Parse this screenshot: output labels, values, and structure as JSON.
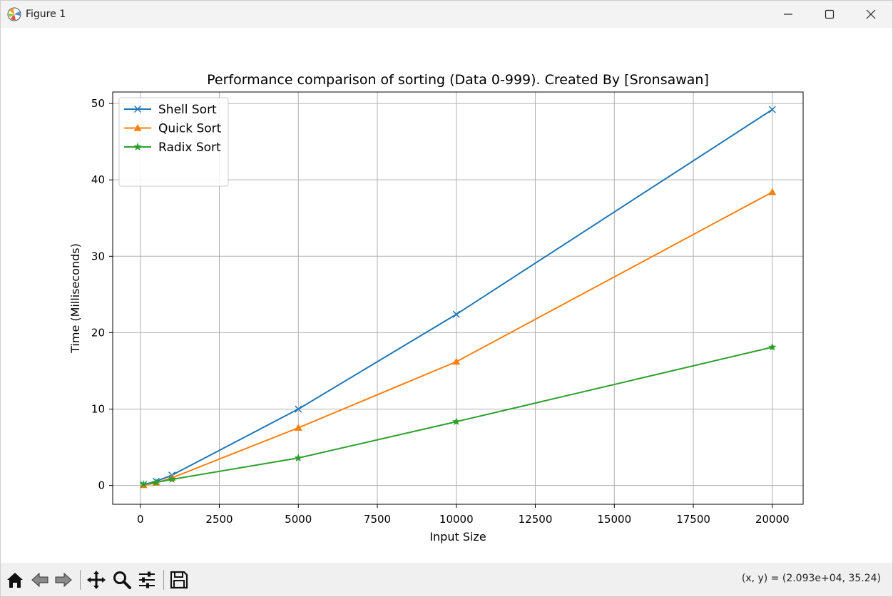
{
  "window": {
    "title": "Figure 1",
    "icon": "matplotlib-icon",
    "controls": [
      "minimize-icon",
      "maximize-icon",
      "close-icon"
    ]
  },
  "toolbar": {
    "buttons": [
      "home-icon",
      "back-arrow-icon",
      "forward-arrow-icon",
      "pan-icon",
      "zoom-icon",
      "configure-subplots-icon",
      "save-icon"
    ],
    "coordinates": "(x, y) = (2.093e+04, 35.24)"
  },
  "chart_data": {
    "type": "line",
    "title": "Performance comparison of sorting (Data 0-999). Created By [Sronsawan]",
    "xlabel": "Input Size",
    "ylabel": "Time (Milliseconds)",
    "xlim": [
      -875,
      20975
    ],
    "ylim": [
      -2.46,
      51.5
    ],
    "xticks": [
      0,
      2500,
      5000,
      7500,
      10000,
      12500,
      15000,
      17500,
      20000
    ],
    "yticks": [
      0,
      10,
      20,
      30,
      40,
      50
    ],
    "grid": true,
    "legend_position": "top-left",
    "x": [
      100,
      500,
      1000,
      5000,
      10000,
      20000
    ],
    "series": [
      {
        "name": "Shell Sort",
        "color": "#1f77b4",
        "marker": "x",
        "values": [
          0.1,
          0.55,
          1.35,
          10.0,
          22.4,
          49.2
        ]
      },
      {
        "name": "Quick Sort",
        "color": "#ff7f0e",
        "marker": "triangle",
        "values": [
          0.05,
          0.35,
          1.0,
          7.55,
          16.2,
          38.4
        ]
      },
      {
        "name": "Radix Sort",
        "color": "#2ca02c",
        "marker": "star",
        "values": [
          0.15,
          0.4,
          0.8,
          3.6,
          8.35,
          18.1
        ]
      }
    ]
  }
}
